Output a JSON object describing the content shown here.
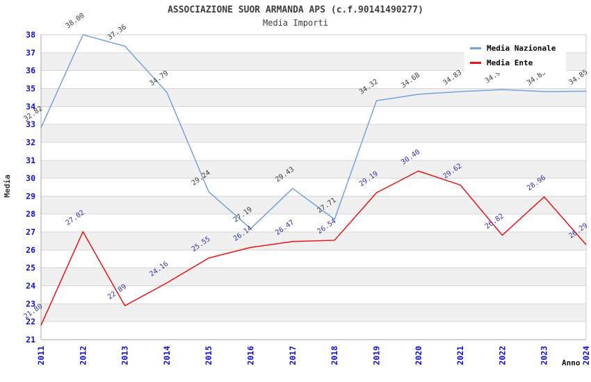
{
  "chart_data": {
    "type": "line",
    "title": "ASSOCIAZIONE SUOR ARMANDA APS (c.f.90141490277)",
    "subtitle": "Media Importi",
    "xlabel": "Anno",
    "ylabel": "Media",
    "x": [
      "2011",
      "2012",
      "2013",
      "2014",
      "2015",
      "2016",
      "2017",
      "2018",
      "2019",
      "2020",
      "2021",
      "2022",
      "2023",
      "2024"
    ],
    "ylim": [
      21,
      38
    ],
    "y_tick_step": 1,
    "grid": "horizontal gridlines with alternating gray bands",
    "legend_position": "top-right",
    "series": [
      {
        "name": "Media Nazionale",
        "color": "#73a2dc",
        "label_color": "#3c3c3c",
        "values": [
          32.82,
          38.0,
          37.36,
          34.79,
          29.24,
          27.19,
          29.43,
          27.71,
          34.32,
          34.68,
          34.83,
          34.94,
          34.83,
          34.85
        ]
      },
      {
        "name": "Media Ente",
        "color": "#ee1111",
        "label_color": "#3333aa",
        "values": [
          21.8,
          27.02,
          22.89,
          24.16,
          25.55,
          26.14,
          26.47,
          26.54,
          29.19,
          30.4,
          29.62,
          26.82,
          28.96,
          26.29
        ]
      }
    ],
    "style": {
      "band_color": "#f0f0f0",
      "grid_color": "#d6d6d6",
      "axis_color": "#a8a8a8",
      "border_color": "#cccccc",
      "tick_label_color": "#0d0dd8",
      "title_color": "#3d3d3d",
      "legend_text_color": "#000000",
      "background": "#ffffff"
    }
  }
}
